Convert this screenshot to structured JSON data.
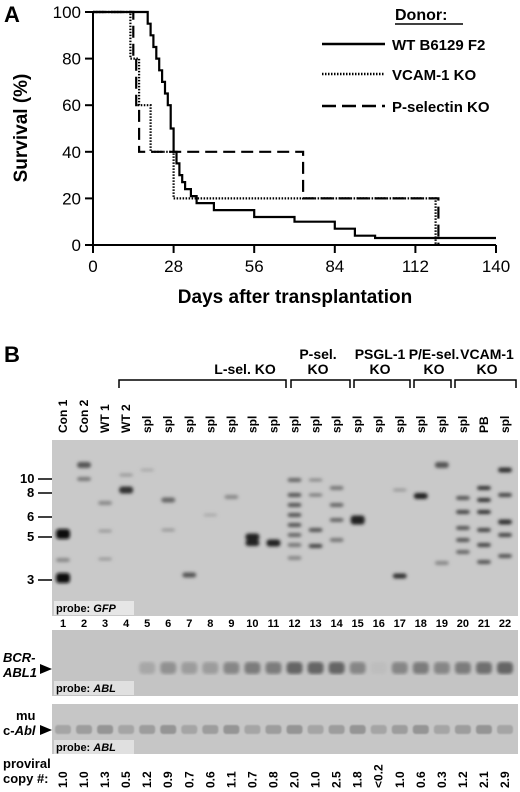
{
  "panel_a": {
    "label": "A",
    "legend_title": "Donor:",
    "chart_data": {
      "type": "line",
      "subtype": "kaplan-meier-step",
      "xlabel": "Days after transplantation",
      "ylabel": "Survival (%)",
      "xlim": [
        0,
        140
      ],
      "ylim": [
        0,
        100
      ],
      "xticks": [
        0,
        28,
        56,
        84,
        112,
        140
      ],
      "yticks": [
        0,
        20,
        40,
        60,
        80,
        100
      ],
      "legend_position": "top-right",
      "series": [
        {
          "name": "WT B6129 F2",
          "style": "solid",
          "points": [
            [
              0,
              100
            ],
            [
              19,
              100
            ],
            [
              19,
              95
            ],
            [
              20,
              95
            ],
            [
              20,
              90
            ],
            [
              21,
              90
            ],
            [
              21,
              85
            ],
            [
              22,
              85
            ],
            [
              22,
              80
            ],
            [
              23,
              80
            ],
            [
              23,
              75
            ],
            [
              24,
              75
            ],
            [
              24,
              70
            ],
            [
              25,
              70
            ],
            [
              25,
              65
            ],
            [
              26,
              65
            ],
            [
              26,
              60
            ],
            [
              27,
              60
            ],
            [
              27,
              50
            ],
            [
              28,
              50
            ],
            [
              28,
              40
            ],
            [
              29,
              40
            ],
            [
              29,
              35
            ],
            [
              30,
              35
            ],
            [
              30,
              30
            ],
            [
              31,
              30
            ],
            [
              31,
              27
            ],
            [
              32,
              27
            ],
            [
              32,
              24
            ],
            [
              34,
              24
            ],
            [
              34,
              21
            ],
            [
              36,
              21
            ],
            [
              36,
              18
            ],
            [
              42,
              18
            ],
            [
              42,
              15
            ],
            [
              56,
              15
            ],
            [
              56,
              12
            ],
            [
              70,
              12
            ],
            [
              70,
              10
            ],
            [
              84,
              10
            ],
            [
              84,
              7
            ],
            [
              91,
              7
            ],
            [
              91,
              4
            ],
            [
              98,
              4
            ],
            [
              98,
              3
            ],
            [
              140,
              3
            ]
          ]
        },
        {
          "name": "VCAM-1 KO",
          "style": "dotted",
          "points": [
            [
              0,
              100
            ],
            [
              13,
              100
            ],
            [
              13,
              80
            ],
            [
              16,
              80
            ],
            [
              16,
              60
            ],
            [
              20,
              60
            ],
            [
              20,
              40
            ],
            [
              28,
              40
            ],
            [
              28,
              20
            ],
            [
              119,
              20
            ],
            [
              119,
              0
            ]
          ]
        },
        {
          "name": "P-selectin KO",
          "style": "dashed",
          "points": [
            [
              0,
              100
            ],
            [
              14,
              100
            ],
            [
              14,
              80
            ],
            [
              15,
              80
            ],
            [
              15,
              60
            ],
            [
              16,
              60
            ],
            [
              16,
              40
            ],
            [
              73,
              40
            ],
            [
              73,
              20
            ],
            [
              120,
              20
            ],
            [
              120,
              0
            ]
          ]
        }
      ]
    }
  },
  "panel_b": {
    "label": "B",
    "groups": [
      {
        "label": "L-sel. KO"
      },
      {
        "label": "P-sel.\nKO",
        "line1": "P-sel.",
        "line2": "KO"
      },
      {
        "label": "PSGL-1\nKO",
        "line1": "PSGL-1",
        "line2": "KO"
      },
      {
        "label": "P/E-sel.\nKO",
        "line1": "P/E-sel.",
        "line2": "KO"
      },
      {
        "label": "VCAM-1\nKO",
        "line1": "VCAM-1",
        "line2": "KO"
      }
    ],
    "lane_labels": [
      "Con 1",
      "Con 2",
      "WT 1",
      "WT 2",
      "spl",
      "spl",
      "spl",
      "spl",
      "spl",
      "spl",
      "spl",
      "spl",
      "spl",
      "spl",
      "spl",
      "spl",
      "spl",
      "spl",
      "spl",
      "spl",
      "PB",
      "spl"
    ],
    "size_markers": [
      "10",
      "8",
      "6",
      "5",
      "3"
    ],
    "blot1_probe_label": "probe: ",
    "blot1_probe_name": "GFP",
    "lane_numbers": [
      "1",
      "2",
      "3",
      "4",
      "5",
      "6",
      "7",
      "8",
      "9",
      "10",
      "11",
      "12",
      "13",
      "14",
      "15",
      "16",
      "17",
      "18",
      "19",
      "20",
      "21",
      "22"
    ],
    "blot2_band_line1": "BCR-",
    "blot2_band_line2": "ABL1",
    "blot2_probe_label": "probe: ",
    "blot2_probe_name": "ABL",
    "blot3_band_line1": "mu",
    "blot3_band_line2": "c-Abl",
    "blot3_probe_label": "probe: ",
    "blot3_probe_name": "ABL",
    "copy_label_line1": "proviral",
    "copy_label_line2": "copy #:",
    "copy_numbers": [
      "1.0",
      "1.0",
      "1.3",
      "0.5",
      "1.2",
      "0.9",
      "0.7",
      "0.6",
      "1.1",
      "0.7",
      "0.8",
      "2.0",
      "1.0",
      "2.5",
      "1.8",
      "<0.2",
      "1.0",
      "0.6",
      "0.3",
      "1.2",
      "2.1",
      "2.9"
    ]
  }
}
